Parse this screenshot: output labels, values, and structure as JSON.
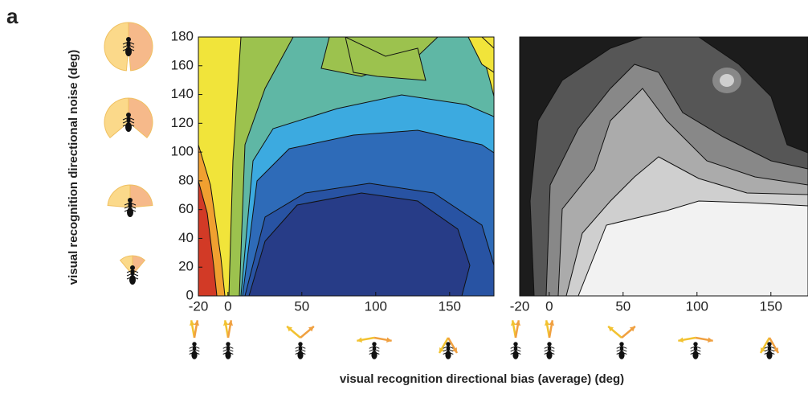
{
  "panel_label": "a",
  "chart_data": [
    {
      "type": "contour",
      "ylabel": "visual recognition directional noise (deg)",
      "xlabel": "visual recognition directional bias (average) (deg)",
      "xlim": [
        -20,
        180
      ],
      "xticks": [
        -20,
        0,
        50,
        100,
        150
      ],
      "ylim": [
        0,
        180
      ],
      "yticks": [
        0,
        20,
        40,
        60,
        80,
        100,
        120,
        140,
        160,
        180
      ]
    },
    {
      "type": "contour",
      "xlim": [
        -20,
        180
      ],
      "xticks": [
        -20,
        0,
        50,
        100,
        150
      ]
    }
  ]
}
